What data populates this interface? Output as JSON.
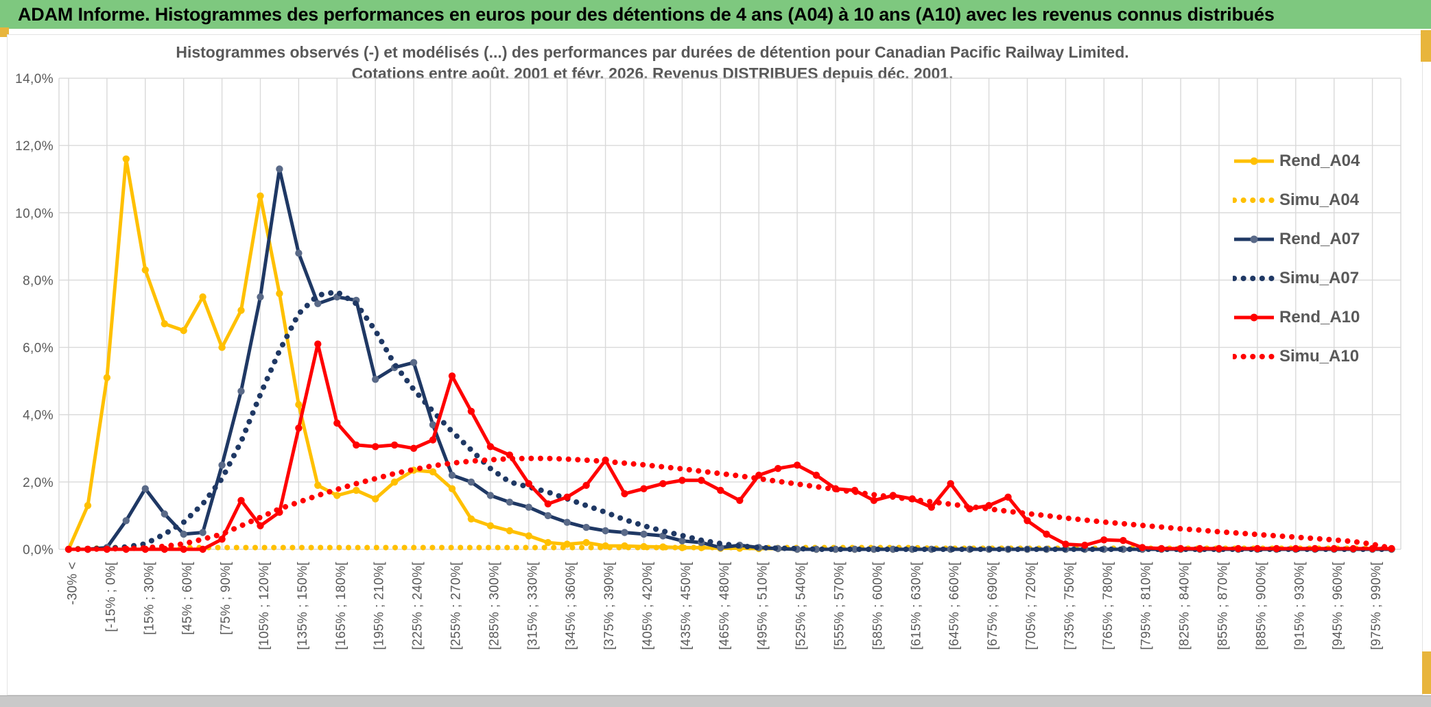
{
  "window": {
    "title": "ADAM Informe. Histogrammes des performances en euros pour des détentions de 4 ans (A04) à 10 ans (A10) avec les revenus connus distribués",
    "colors": {
      "titlebar_green": "#7EC87F",
      "accent_gold": "#E8B53C",
      "text_grey": "#595959",
      "gridline": "#D9D9D9"
    }
  },
  "chart_data": {
    "type": "line",
    "title_line1": "Histogrammes observés (-) et modélisés (...) des performances par durées de détention pour Canadian Pacific Railway Limited.",
    "title_line2": "Cotations entre août. 2001 et févr. 2026. Revenus DISTRIBUES depuis déc. 2001.",
    "ylabel": "",
    "xlabel": "",
    "ylim": [
      0,
      14
    ],
    "grid": true,
    "legend_position": "right-inside",
    "y_ticks": [
      "0,0%",
      "2,0%",
      "4,0%",
      "6,0%",
      "8,0%",
      "10,0%",
      "12,0%",
      "14,0%"
    ],
    "x_labels": [
      "-30% <",
      "[-15% ; 0%[",
      "[15% ; 30%[",
      "[45% ; 60%[",
      "[75% ; 90%[",
      "[105% ; 120%[",
      "[135% ; 150%[",
      "[165% ; 180%[",
      "[195% ; 210%[",
      "[225% ; 240%[",
      "[255% ; 270%[",
      "[285% ; 300%[",
      "[315% ; 330%[",
      "[345% ; 360%[",
      "[375% ; 390%[",
      "[405% ; 420%[",
      "[435% ; 450%[",
      "[465% ; 480%[",
      "[495% ; 510%[",
      "[525% ; 540%[",
      "[555% ; 570%[",
      "[585% ; 600%[",
      "[615% ; 630%[",
      "[645% ; 660%[",
      "[675% ; 690%[",
      "[705% ; 720%[",
      "[735% ; 750%[",
      "[765% ; 780%[",
      "[795% ; 810%[",
      "[825% ; 840%[",
      "[855% ; 870%[",
      "[885% ; 900%[",
      "[915% ; 930%[",
      "[945% ; 960%[",
      "[975% ; 990%["
    ],
    "bins": 70,
    "series": [
      {
        "name": "Rend_A04",
        "style": "solid",
        "color": "#FFC000",
        "marker_color": "#FFC000",
        "values": [
          0,
          1.3,
          5.1,
          11.6,
          8.3,
          6.7,
          6.5,
          7.5,
          6,
          7.1,
          10.5,
          7.6,
          4.3,
          1.9,
          1.6,
          1.75,
          1.5,
          2,
          2.35,
          2.3,
          1.8,
          0.9,
          0.7,
          0.55,
          0.4,
          0.2,
          0.15,
          0.2,
          0.1,
          0.1,
          0.08,
          0.07,
          0.05,
          0.05,
          0.03,
          0.03,
          0.02,
          0.02,
          0,
          0,
          0,
          0,
          0,
          0,
          0,
          0,
          0,
          0,
          0,
          0,
          0,
          0,
          0,
          0,
          0,
          0,
          0,
          0,
          0,
          0,
          0,
          0,
          0,
          0,
          0,
          0,
          0,
          0,
          0,
          0
        ]
      },
      {
        "name": "Simu_A04",
        "style": "dotted",
        "color": "#FFC000",
        "values": [
          0.02,
          0.02,
          0.05,
          0.05,
          0.05,
          0.05,
          0.05,
          0.05,
          0.05,
          0.05,
          0.05,
          0.05,
          0.05,
          0.05,
          0.05,
          0.05,
          0.05,
          0.05,
          0.05,
          0.05,
          0.05,
          0.05,
          0.05,
          0.05,
          0.05,
          0.05,
          0.05,
          0.05,
          0.05,
          0.05,
          0.05,
          0.05,
          0.05,
          0.05,
          0.05,
          0.05,
          0.05,
          0.05,
          0.05,
          0.05,
          0.05,
          0.05,
          0.05,
          0.05,
          0.05,
          0.03,
          0.03,
          0.03,
          0.03,
          0.03,
          0.03,
          0.03,
          0.03,
          0.03,
          0.03,
          0.03,
          0.03,
          0.03,
          0.03,
          0.03,
          0.03,
          0.03,
          0.03,
          0.03,
          0.03,
          0.03,
          0.03,
          0.03,
          0.03,
          0.03
        ]
      },
      {
        "name": "Rend_A07",
        "style": "solid",
        "color": "#1F3864",
        "marker_color": "#5A6A88",
        "values": [
          0,
          0,
          0.05,
          0.85,
          1.8,
          1.05,
          0.45,
          0.5,
          2.5,
          4.7,
          7.5,
          11.3,
          8.8,
          7.3,
          7.5,
          7.4,
          5.05,
          5.4,
          5.55,
          3.7,
          2.2,
          2,
          1.6,
          1.4,
          1.25,
          1,
          0.8,
          0.65,
          0.55,
          0.5,
          0.45,
          0.4,
          0.25,
          0.2,
          0.05,
          0.12,
          0.05,
          0.02,
          0,
          0,
          0,
          0,
          0,
          0,
          0,
          0,
          0,
          0,
          0,
          0,
          0,
          0,
          0,
          0,
          0,
          0,
          0,
          0,
          0,
          0,
          0,
          0,
          0,
          0,
          0,
          0,
          0,
          0,
          0,
          0
        ]
      },
      {
        "name": "Simu_A07",
        "style": "dotted",
        "color": "#1F3864",
        "values": [
          0,
          0.02,
          0.03,
          0.07,
          0.16,
          0.45,
          0.8,
          1.35,
          2.1,
          3.2,
          4.6,
          5.9,
          7,
          7.55,
          7.65,
          7.3,
          6.5,
          5.5,
          4.75,
          4.1,
          3.5,
          2.95,
          2.4,
          2,
          1.85,
          1.7,
          1.5,
          1.3,
          1.1,
          0.88,
          0.7,
          0.54,
          0.41,
          0.27,
          0.17,
          0.1,
          0.05,
          0.03,
          0.02,
          0,
          0,
          0,
          0,
          0,
          0,
          0,
          0,
          0,
          0,
          0,
          0,
          0,
          0,
          0,
          0,
          0,
          0,
          0,
          0,
          0,
          0,
          0,
          0,
          0,
          0,
          0,
          0,
          0,
          0,
          0
        ]
      },
      {
        "name": "Rend_A10",
        "style": "solid",
        "color": "#FF0000",
        "marker_color": "#FF0000",
        "values": [
          0,
          0,
          0,
          0,
          0,
          0,
          0,
          0,
          0.3,
          1.45,
          0.7,
          1.1,
          3.6,
          6.1,
          3.75,
          3.1,
          3.05,
          3.1,
          3,
          3.25,
          5.15,
          4.1,
          3.05,
          2.8,
          1.95,
          1.35,
          1.55,
          1.9,
          2.65,
          1.65,
          1.8,
          1.95,
          2.05,
          2.05,
          1.75,
          1.45,
          2.2,
          2.4,
          2.5,
          2.2,
          1.8,
          1.75,
          1.45,
          1.6,
          1.5,
          1.25,
          1.95,
          1.2,
          1.3,
          1.55,
          0.85,
          0.45,
          0.15,
          0.12,
          0.28,
          0.26,
          0.05,
          0.02,
          0.02,
          0.02,
          0.02,
          0.02,
          0.02,
          0.02,
          0.02,
          0.02,
          0.02,
          0.02,
          0.02,
          0.02
        ]
      },
      {
        "name": "Simu_A10",
        "style": "dotted",
        "color": "#FF0000",
        "values": [
          0,
          0,
          0.01,
          0.02,
          0.04,
          0.09,
          0.16,
          0.3,
          0.45,
          0.7,
          0.95,
          1.2,
          1.4,
          1.6,
          1.78,
          1.95,
          2.1,
          2.25,
          2.37,
          2.48,
          2.56,
          2.62,
          2.66,
          2.69,
          2.7,
          2.7,
          2.68,
          2.65,
          2.61,
          2.56,
          2.51,
          2.45,
          2.39,
          2.32,
          2.25,
          2.18,
          2.1,
          2.02,
          1.94,
          1.86,
          1.78,
          1.7,
          1.62,
          1.55,
          1.48,
          1.41,
          1.34,
          1.27,
          1.2,
          1.13,
          1.06,
          1,
          0.93,
          0.87,
          0.81,
          0.76,
          0.71,
          0.66,
          0.61,
          0.57,
          0.52,
          0.48,
          0.44,
          0.4,
          0.36,
          0.32,
          0.28,
          0.23,
          0.15,
          0.03
        ]
      }
    ]
  }
}
